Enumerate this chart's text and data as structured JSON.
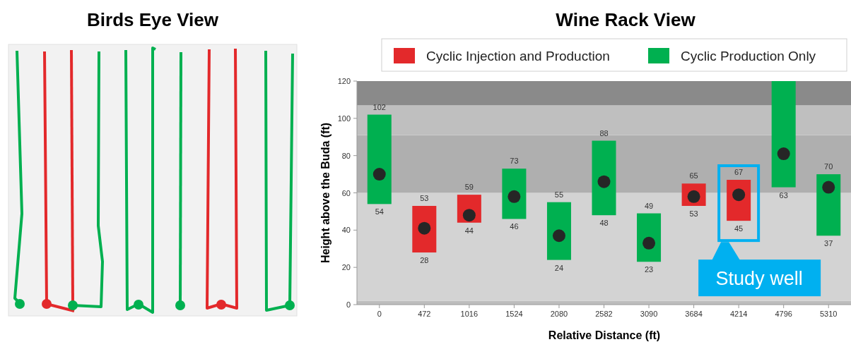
{
  "chart_data": [
    {
      "type": "other",
      "title": "Birds Eye View"
    },
    {
      "type": "bar",
      "title": "Wine Rack View",
      "xlabel": "Relative Distance (ft)",
      "ylabel": "Height above the Buda (ft)",
      "categories": [
        "0",
        "472",
        "1016",
        "1524",
        "2080",
        "2582",
        "3090",
        "3684",
        "4214",
        "4796",
        "5310"
      ],
      "series": [
        {
          "name": "Cyclic Injection and Production",
          "color": "#e3292b",
          "values": [
            null,
            25,
            15,
            null,
            null,
            null,
            null,
            12,
            22,
            null,
            null
          ],
          "base": [
            null,
            28,
            44,
            null,
            null,
            null,
            null,
            53,
            45,
            null,
            null
          ],
          "value_labels": [
            null,
            "53",
            "59",
            null,
            null,
            null,
            null,
            "65",
            "67",
            null,
            null
          ]
        },
        {
          "name": "Cyclic Production Only",
          "color": "#00b050",
          "values": [
            48,
            null,
            null,
            27,
            31,
            40,
            26,
            null,
            null,
            57,
            33
          ],
          "base": [
            54,
            null,
            null,
            46,
            24,
            48,
            23,
            null,
            null,
            63,
            37
          ],
          "value_labels": [
            "102",
            null,
            null,
            "73",
            "55",
            "88",
            "49",
            null,
            null,
            null,
            "70"
          ]
        },
        {
          "type": "scatter",
          "color": "#262626",
          "marker": "circle",
          "values": [
            70,
            41,
            48,
            58,
            37,
            66,
            33,
            58,
            59,
            81,
            63
          ]
        }
      ],
      "annotations": [
        {
          "text": "54",
          "x": "0",
          "y": 54
        },
        {
          "text": "28",
          "x": "472",
          "y": 28
        },
        {
          "text": "44",
          "x": "1016",
          "y": 44
        },
        {
          "text": "46",
          "x": "1524",
          "y": 46
        },
        {
          "text": "24",
          "x": "2080",
          "y": 24
        },
        {
          "text": "48",
          "x": "2582",
          "y": 48
        },
        {
          "text": "23",
          "x": "3090",
          "y": 23
        },
        {
          "text": "53",
          "x": "3684",
          "y": 53
        },
        {
          "text": "45",
          "x": "4214",
          "y": 45
        },
        {
          "text": "63",
          "x": "4796",
          "y": 63
        },
        {
          "text": "37",
          "x": "5310",
          "y": 37
        },
        {
          "text": "Study well",
          "x": "4214",
          "y": 45
        }
      ],
      "bands": [
        {
          "axis": "y",
          "from": 0,
          "to": 2,
          "color": "#bdbdbd"
        },
        {
          "axis": "y",
          "from": 2,
          "to": 60,
          "color": "#d3d3d3"
        },
        {
          "axis": "y",
          "from": 60,
          "to": 91,
          "color": "#afafaf"
        },
        {
          "axis": "y",
          "from": 91,
          "to": 107,
          "color": "#bfbfbf"
        },
        {
          "axis": "y",
          "from": 107,
          "to": 120,
          "color": "#8a8a8a"
        }
      ],
      "ylim": [
        0,
        120
      ],
      "yticks": [
        0,
        20,
        40,
        60,
        80,
        100,
        120
      ],
      "legend": "top",
      "grid": false
    }
  ]
}
